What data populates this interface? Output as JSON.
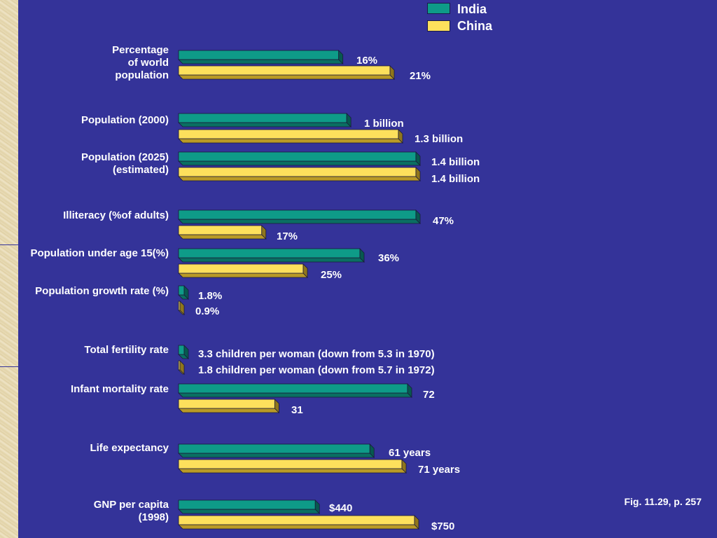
{
  "colors": {
    "background": "#343399",
    "india": "#0e9b88",
    "china": "#fde05c",
    "text": "#ffffff"
  },
  "legend": [
    {
      "name": "India",
      "color": "#0e9b88"
    },
    {
      "name": "China",
      "color": "#fde05c"
    }
  ],
  "caption": "Fig. 11.29, p. 257",
  "chart_data": {
    "type": "bar",
    "orientation": "horizontal",
    "series_names": [
      "India",
      "China"
    ],
    "groups": [
      {
        "label": "Percentage\nof world\npopulation",
        "values": [
          16,
          21
        ],
        "value_labels": [
          "16%",
          "21%"
        ]
      },
      {
        "label": "Population (2000)",
        "values": [
          1.0,
          1.3
        ],
        "value_labels": [
          "1 billion",
          "1.3 billion"
        ]
      },
      {
        "label": "Population (2025)\n(estimated)",
        "values": [
          1.4,
          1.4
        ],
        "value_labels": [
          "1.4 billion",
          "1.4 billion"
        ]
      },
      {
        "label": "Illiteracy (%of adults)",
        "values": [
          47,
          17
        ],
        "value_labels": [
          "47%",
          "17%"
        ]
      },
      {
        "label": "Population under age 15(%)",
        "values": [
          36,
          25
        ],
        "value_labels": [
          "36%",
          "25%"
        ]
      },
      {
        "label": "Population growth rate (%)",
        "values": [
          1.8,
          0.9
        ],
        "value_labels": [
          "1.8%",
          "0.9%"
        ]
      },
      {
        "label": "Total fertility rate",
        "values": [
          3.3,
          1.8
        ],
        "value_labels": [
          "3.3 children per woman (down from 5.3 in 1970)",
          "1.8 children per woman (down from 5.7 in 1972)"
        ]
      },
      {
        "label": "Infant mortality rate",
        "values": [
          72,
          31
        ],
        "value_labels": [
          "72",
          "31"
        ]
      },
      {
        "label": "Life expectancy",
        "values": [
          61,
          71
        ],
        "value_labels": [
          "61 years",
          "71 years"
        ]
      },
      {
        "label": "GNP per capita\n(1998)",
        "values": [
          440,
          750
        ],
        "value_labels": [
          "$440",
          "$750"
        ]
      }
    ],
    "legend_position": "top-right",
    "grid": false
  }
}
